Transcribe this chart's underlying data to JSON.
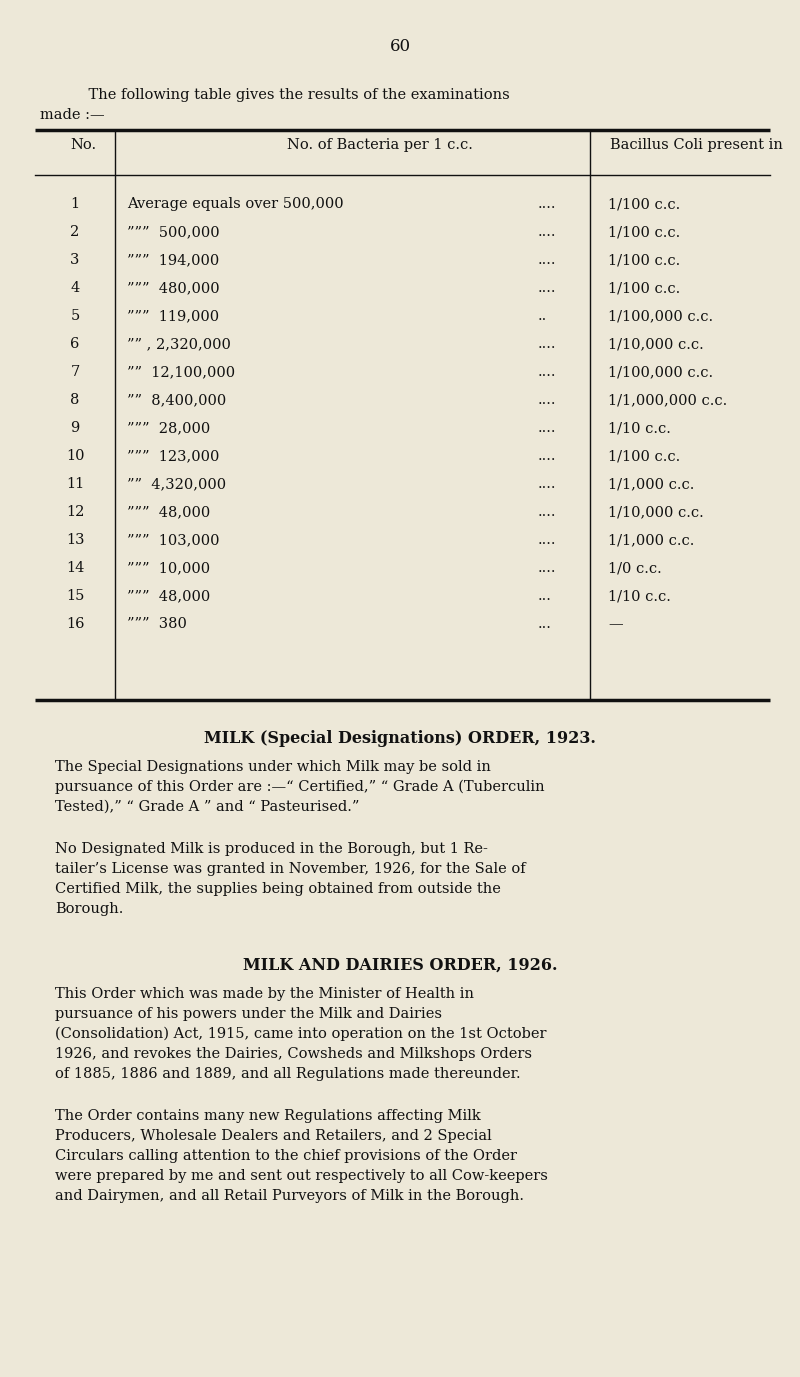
{
  "bg_color": "#ede8d8",
  "text_color": "#111111",
  "page_number": "60",
  "intro_line1": "    The following table gives the results of the examinations",
  "intro_line2": "made :—",
  "col1_header": "No.",
  "col2_header": "No. of Bacteria per 1 c.c.",
  "col3_header": "Bacillus Coli present in",
  "rows": [
    {
      "no": "1",
      "bact": "Average equals over 500,000",
      "dots": "....",
      "coli": "1/100 c.c."
    },
    {
      "no": "2",
      "bact": "”””  500,000",
      "dots": "....",
      "coli": "1/100 c.c."
    },
    {
      "no": "3",
      "bact": "”””  194,000",
      "dots": "....",
      "coli": "1/100 c.c."
    },
    {
      "no": "4",
      "bact": "”””  480,000",
      "dots": "....",
      "coli": "1/100 c.c."
    },
    {
      "no": "5",
      "bact": "”””  119,000",
      "dots": "..",
      "coli": "1/100,000 c.c."
    },
    {
      "no": "6",
      "bact": "”” , 2,320,000",
      "dots": "....",
      "coli": "1/10,000 c.c."
    },
    {
      "no": "7",
      "bact": "””  12,100,000",
      "dots": "....",
      "coli": "1/100,000 c.c."
    },
    {
      "no": "8",
      "bact": "””  8,400,000",
      "dots": "....",
      "coli": "1/1,000,000 c.c."
    },
    {
      "no": "9",
      "bact": "”””  28,000",
      "dots": "....",
      "coli": "1/10 c.c."
    },
    {
      "no": "10",
      "bact": "”””  123,000",
      "dots": "....",
      "coli": "1/100 c.c."
    },
    {
      "no": "11",
      "bact": "””  4,320,000",
      "dots": "....",
      "coli": "1/1,000 c.c."
    },
    {
      "no": "12",
      "bact": "”””  48,000",
      "dots": "....",
      "coli": "1/10,000 c.c."
    },
    {
      "no": "13",
      "bact": "”””  103,000",
      "dots": "....",
      "coli": "1/1,000 c.c."
    },
    {
      "no": "14",
      "bact": "”””  10,000",
      "dots": "....",
      "coli": "1/0 c.c."
    },
    {
      "no": "15",
      "bact": "”””  48,000",
      "dots": "...",
      "coli": "1/10 c.c."
    },
    {
      "no": "16",
      "bact": "”””  380",
      "dots": "...",
      "coli": "—"
    }
  ],
  "s1_title": "MILK (Special Designations) ORDER, 1923.",
  "s1_p1": [
    "The Special Designations under which Milk may be sold in",
    "pursuance of this Order are :—“ Certified,” “ Grade A (Tuberculin",
    "Tested),” “ Grade A ” and “ Pasteurised.”"
  ],
  "s1_p2": [
    "No Designated Milk is produced in the Borough, but 1 Re-",
    "tailer’s License was granted in November, 1926, for the Sale of",
    "Certified Milk, the supplies being obtained from outside the",
    "Borough."
  ],
  "s2_title": "MILK AND DAIRIES ORDER, 1926.",
  "s2_p1": [
    "This Order which was made by the Minister of Health in",
    "pursuance of his powers under the Milk and Dairies",
    "(Consolidation) Act, 1915, came into operation on the 1st October",
    "1926, and revokes the Dairies, Cowsheds and Milkshops Orders",
    "of 1885, 1886 and 1889, and all Regulations made thereunder."
  ],
  "s2_p2": [
    "The Order contains many new Regulations affecting Milk",
    "Producers, Wholesale Dealers and Retailers, and 2 Special",
    "Circulars calling attention to the chief provisions of the Order",
    "were prepared by me and sent out respectively to all Cow-keepers",
    "and Dairymen, and all Retail Purveyors of Milk in the Borough."
  ]
}
